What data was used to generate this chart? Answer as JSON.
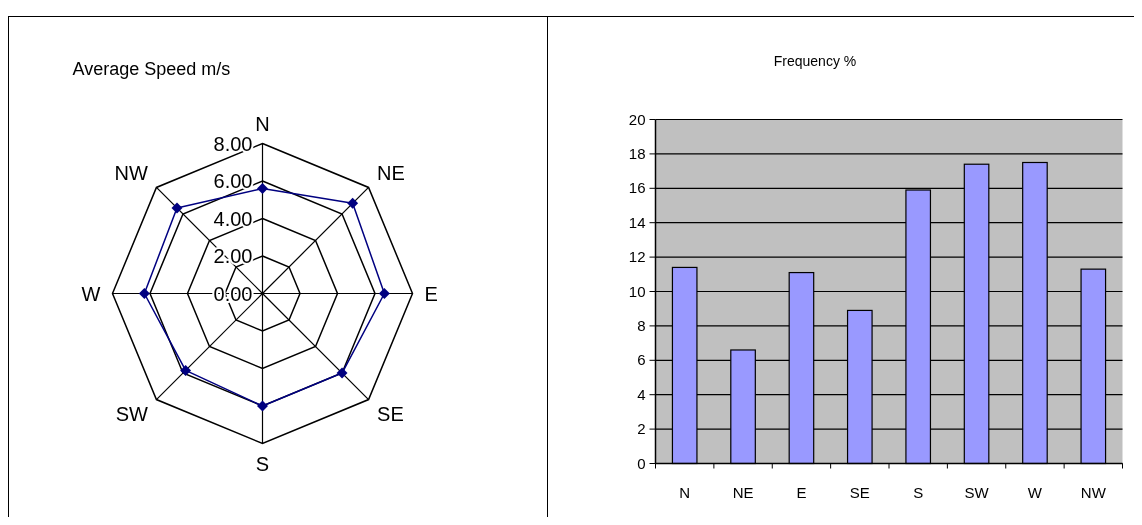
{
  "chart_data": [
    {
      "type": "radar",
      "title": "Average Speed m/s",
      "categories": [
        "N",
        "NE",
        "E",
        "SE",
        "S",
        "SW",
        "W",
        "NW"
      ],
      "series": [
        {
          "color": "#000080",
          "values": [
            5.6,
            6.8,
            6.5,
            6.0,
            6.0,
            5.8,
            6.3,
            6.45
          ]
        }
      ],
      "ylim": [
        0,
        8
      ],
      "yticks": [
        {
          "value": 0,
          "label": "0.00"
        },
        {
          "value": 2,
          "label": "2.00"
        },
        {
          "value": 4,
          "label": "4.00"
        },
        {
          "value": 6,
          "label": "6.00"
        },
        {
          "value": 8,
          "label": "8.00"
        }
      ],
      "grid": true,
      "marker": "diamond"
    },
    {
      "type": "bar",
      "title": "Frequency %",
      "categories": [
        "N",
        "NE",
        "E",
        "SE",
        "S",
        "SW",
        "W",
        "NW"
      ],
      "values": [
        11.4,
        6.6,
        11.1,
        8.9,
        15.9,
        17.4,
        17.5,
        11.3
      ],
      "color": "#9999ff",
      "ylim": [
        0,
        20
      ],
      "yticks": [
        0,
        2,
        4,
        6,
        8,
        10,
        12,
        14,
        16,
        18,
        20
      ],
      "grid": "y"
    }
  ]
}
